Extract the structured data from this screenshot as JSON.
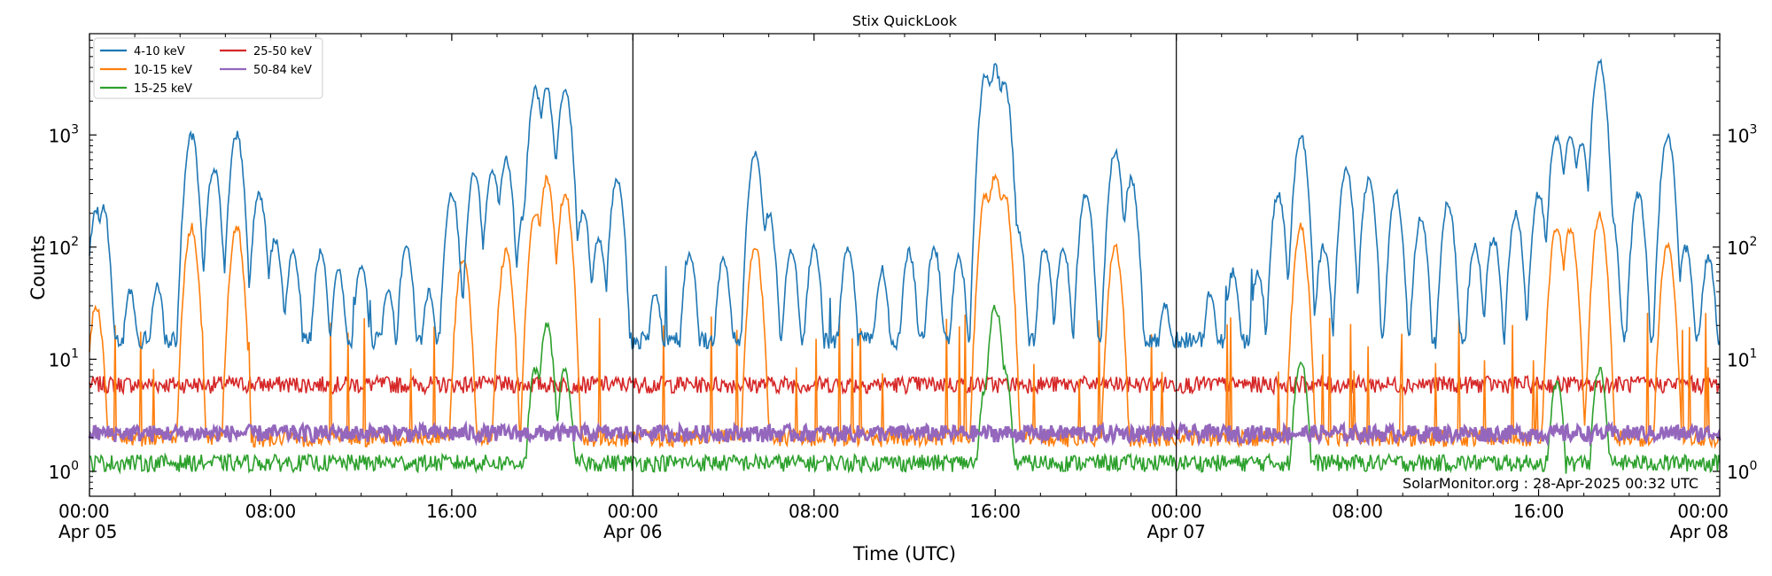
{
  "chart_data": {
    "type": "line",
    "title": "Stix QuickLook",
    "xlabel": "Time (UTC)",
    "ylabel": "Counts",
    "yscale": "log",
    "ylim": [
      0.6,
      8000
    ],
    "xlim_hours": [
      0,
      72
    ],
    "grid": false,
    "legend_position": "top-left",
    "y_ticks": [
      {
        "value": 1,
        "base": "10",
        "exp": "0"
      },
      {
        "value": 10,
        "base": "10",
        "exp": "1"
      },
      {
        "value": 100,
        "base": "10",
        "exp": "2"
      },
      {
        "value": 1000,
        "base": "10",
        "exp": "3"
      }
    ],
    "x_ticks": [
      {
        "hour": 0,
        "time": "00:00",
        "date": "Apr 05"
      },
      {
        "hour": 8,
        "time": "08:00",
        "date": ""
      },
      {
        "hour": 16,
        "time": "16:00",
        "date": ""
      },
      {
        "hour": 24,
        "time": "00:00",
        "date": "Apr 06"
      },
      {
        "hour": 32,
        "time": "08:00",
        "date": ""
      },
      {
        "hour": 40,
        "time": "16:00",
        "date": ""
      },
      {
        "hour": 48,
        "time": "00:00",
        "date": "Apr 07"
      },
      {
        "hour": 56,
        "time": "08:00",
        "date": ""
      },
      {
        "hour": 64,
        "time": "16:00",
        "date": ""
      },
      {
        "hour": 72,
        "time": "00:00",
        "date": "Apr 08"
      }
    ],
    "day_boundaries_hours": [
      24,
      48
    ],
    "annotation": "SolarMonitor.org : 28-Apr-2025 00:32 UTC",
    "series": [
      {
        "name": "4-10 keV",
        "color": "#1f77b4",
        "baseline": 15,
        "peaks": [
          [
            0.3,
            220
          ],
          [
            0.6,
            220
          ],
          [
            1.8,
            40
          ],
          [
            3.0,
            45
          ],
          [
            4.5,
            1000
          ],
          [
            5.5,
            500
          ],
          [
            6.5,
            1000
          ],
          [
            7.5,
            300
          ],
          [
            8.2,
            120
          ],
          [
            9.0,
            90
          ],
          [
            10.2,
            90
          ],
          [
            11.0,
            60
          ],
          [
            12.0,
            70
          ],
          [
            13.2,
            40
          ],
          [
            14.0,
            100
          ],
          [
            15.0,
            40
          ],
          [
            16.0,
            300
          ],
          [
            17.0,
            450
          ],
          [
            17.8,
            500
          ],
          [
            18.4,
            600
          ],
          [
            19.2,
            200
          ],
          [
            19.7,
            2500
          ],
          [
            20.2,
            2500
          ],
          [
            20.6,
            150
          ],
          [
            21.0,
            2600
          ],
          [
            21.8,
            200
          ],
          [
            22.5,
            120
          ],
          [
            23.3,
            400
          ],
          [
            25.0,
            40
          ],
          [
            26.5,
            90
          ],
          [
            28.0,
            80
          ],
          [
            29.4,
            700
          ],
          [
            30.0,
            200
          ],
          [
            31.0,
            90
          ],
          [
            32.0,
            100
          ],
          [
            33.5,
            100
          ],
          [
            35.0,
            60
          ],
          [
            36.2,
            90
          ],
          [
            37.3,
            100
          ],
          [
            38.4,
            80
          ],
          [
            39.6,
            3500
          ],
          [
            40.0,
            4000
          ],
          [
            40.4,
            3000
          ],
          [
            41.0,
            150
          ],
          [
            42.2,
            100
          ],
          [
            43.0,
            100
          ],
          [
            44.0,
            300
          ],
          [
            45.3,
            700
          ],
          [
            46.0,
            400
          ],
          [
            47.5,
            30
          ],
          [
            49.5,
            40
          ],
          [
            50.5,
            60
          ],
          [
            51.6,
            60
          ],
          [
            52.5,
            300
          ],
          [
            53.5,
            1000
          ],
          [
            54.5,
            100
          ],
          [
            55.5,
            500
          ],
          [
            56.5,
            400
          ],
          [
            57.7,
            300
          ],
          [
            58.8,
            180
          ],
          [
            60.0,
            250
          ],
          [
            61.2,
            100
          ],
          [
            62.0,
            120
          ],
          [
            63.0,
            200
          ],
          [
            64.0,
            300
          ],
          [
            64.8,
            1000
          ],
          [
            65.4,
            1000
          ],
          [
            65.9,
            800
          ],
          [
            66.7,
            4500
          ],
          [
            67.2,
            200
          ],
          [
            68.4,
            300
          ],
          [
            69.7,
            1000
          ],
          [
            70.5,
            100
          ],
          [
            71.5,
            80
          ]
        ]
      },
      {
        "name": "10-15 keV",
        "color": "#ff7f0e",
        "baseline": 2,
        "peaks": [
          [
            0.3,
            30
          ],
          [
            4.5,
            150
          ],
          [
            6.5,
            150
          ],
          [
            16.5,
            80
          ],
          [
            18.4,
            90
          ],
          [
            19.7,
            200
          ],
          [
            20.2,
            400
          ],
          [
            21.0,
            300
          ],
          [
            29.4,
            100
          ],
          [
            39.6,
            300
          ],
          [
            40.0,
            450
          ],
          [
            40.4,
            300
          ],
          [
            45.3,
            100
          ],
          [
            53.5,
            150
          ],
          [
            64.8,
            150
          ],
          [
            65.4,
            150
          ],
          [
            66.7,
            200
          ],
          [
            69.7,
            100
          ]
        ]
      },
      {
        "name": "15-25 keV",
        "color": "#2ca02c",
        "baseline": 1.2,
        "peaks": [
          [
            19.7,
            8
          ],
          [
            20.2,
            20
          ],
          [
            21.0,
            8
          ],
          [
            39.6,
            6
          ],
          [
            40.0,
            30
          ],
          [
            40.4,
            8
          ],
          [
            53.5,
            10
          ],
          [
            64.8,
            6
          ],
          [
            66.7,
            8
          ]
        ]
      },
      {
        "name": "25-50 keV",
        "color": "#d62728",
        "baseline": 6,
        "peaks": []
      },
      {
        "name": "50-84 keV",
        "color": "#9467bd",
        "baseline": 2.2,
        "peaks": []
      }
    ]
  }
}
